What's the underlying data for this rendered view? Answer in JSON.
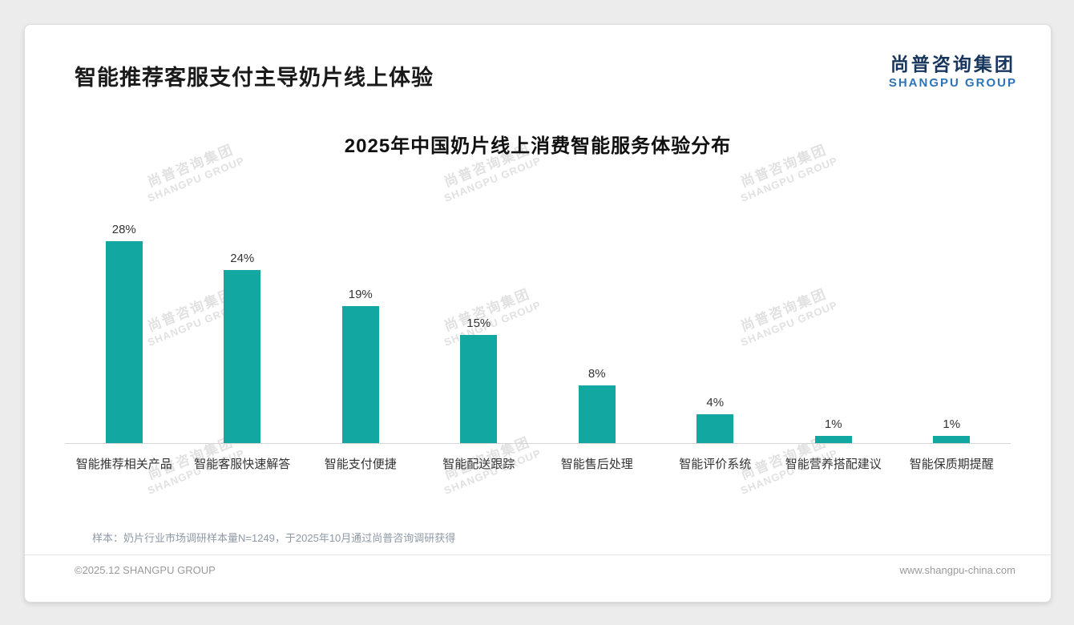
{
  "page": {
    "header": {
      "title": "智能推荐客服支付主导奶片线上体验"
    },
    "logo": {
      "cn": "尚普咨询集团",
      "en": "SHANGPU GROUP"
    },
    "watermark": {
      "cn": "尚普咨询集团",
      "en": "SHANGPU GROUP"
    },
    "footnote": "样本：奶片行业市场调研样本量N=1249，于2025年10月通过尚普咨询调研获得",
    "footer": {
      "left": "©2025.12 SHANGPU GROUP",
      "right": "www.shangpu-china.com"
    }
  },
  "chart_data": {
    "type": "bar",
    "title": "2025年中国奶片线上消费智能服务体验分布",
    "categories": [
      "智能推荐相关产品",
      "智能客服快速解答",
      "智能支付便捷",
      "智能配送跟踪",
      "智能售后处理",
      "智能评价系统",
      "智能营养搭配建议",
      "智能保质期提醒"
    ],
    "values": [
      28,
      24,
      19,
      15,
      8,
      4,
      1,
      1
    ],
    "labels": [
      "28%",
      "24%",
      "19%",
      "15%",
      "8%",
      "4%",
      "1%",
      "1%"
    ],
    "bar_color": "#13A7A1",
    "ylim": [
      0,
      30
    ],
    "grid": false,
    "legend": false,
    "xlabel": "",
    "ylabel": ""
  }
}
